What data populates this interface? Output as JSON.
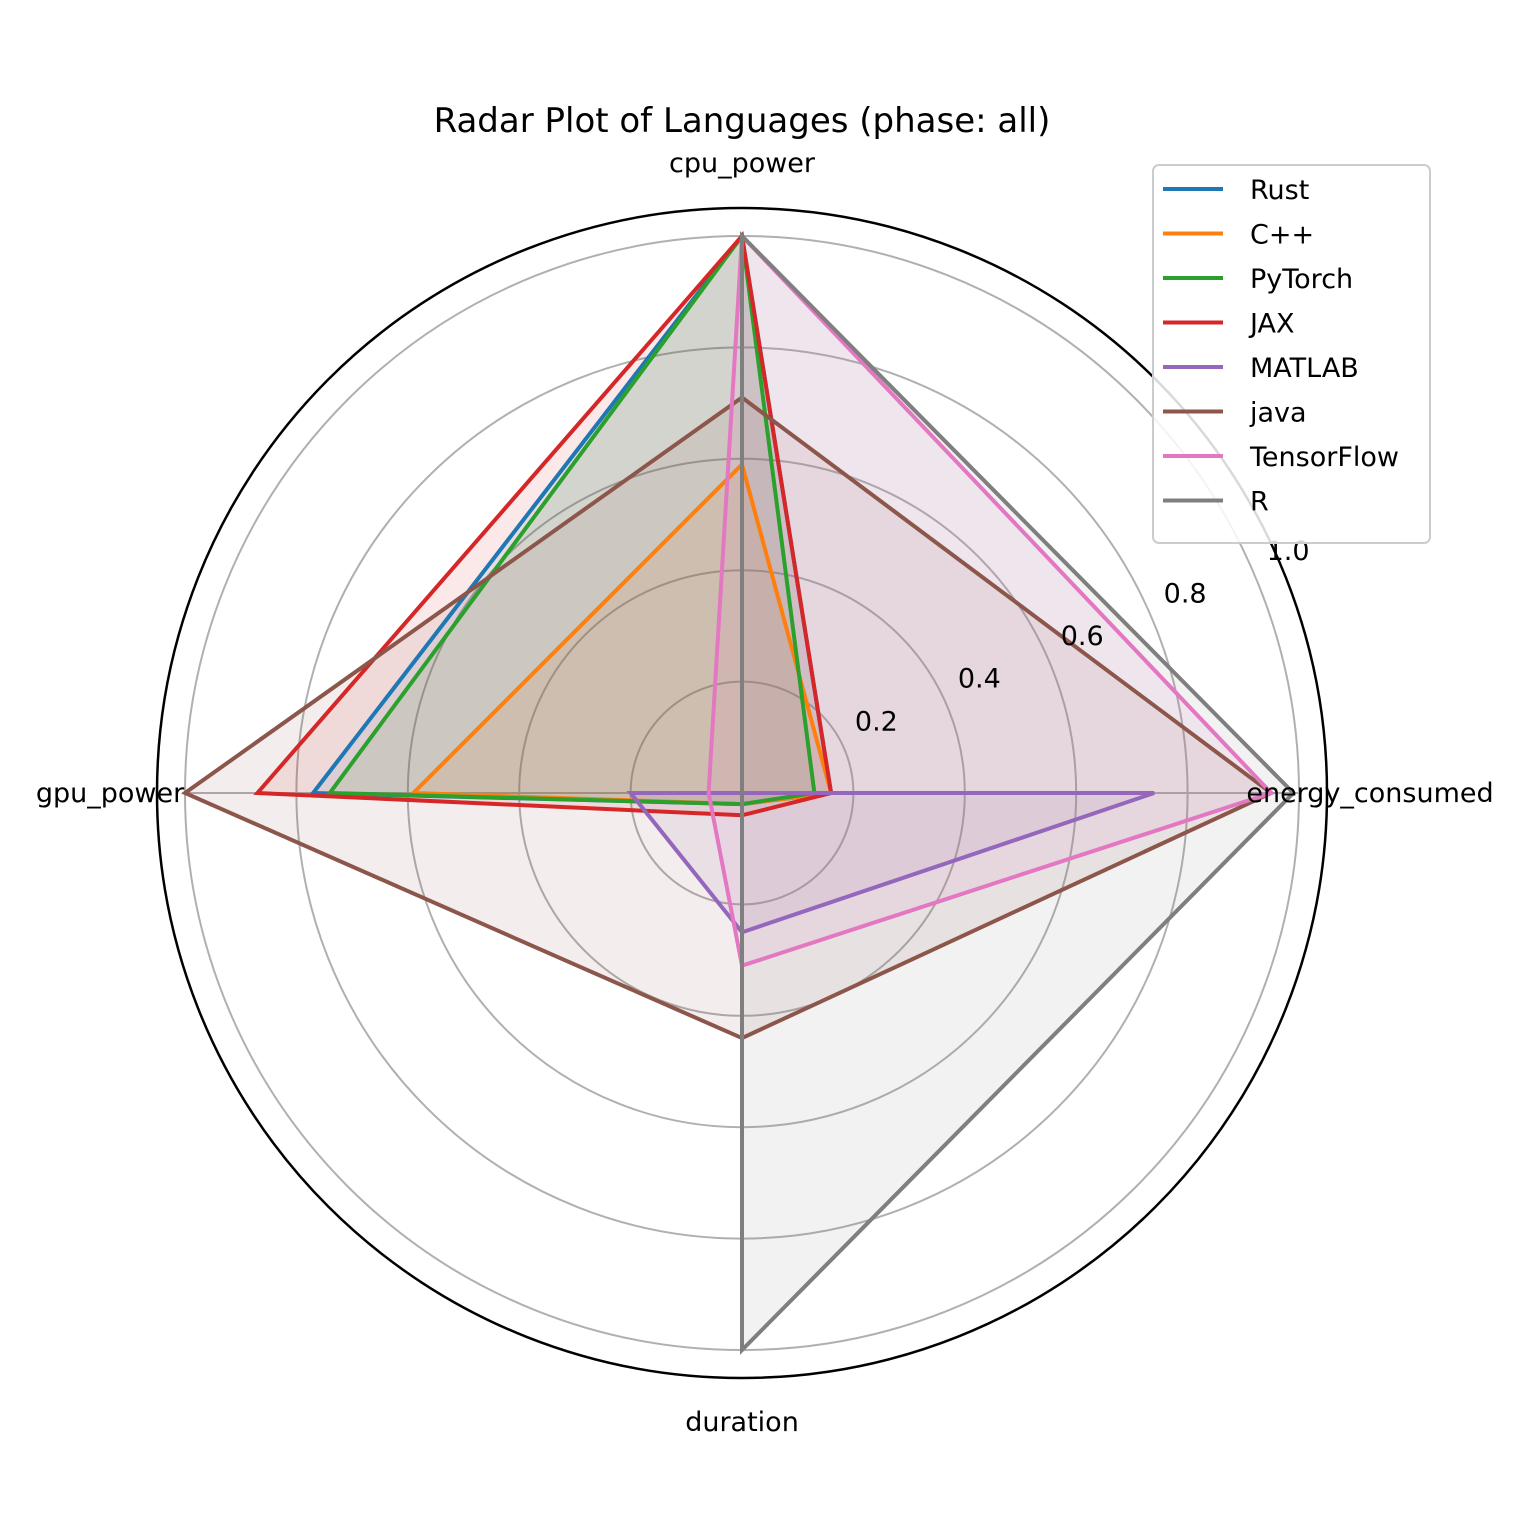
{
  "chart_data": {
    "type": "radar",
    "title": "Radar Plot of Languages (phase: all)",
    "axes": [
      "cpu_power",
      "energy_consumed",
      "duration",
      "gpu_power"
    ],
    "rlim": [
      0,
      1.0
    ],
    "radial_ticks": [
      0.2,
      0.4,
      0.6,
      0.8,
      1.0
    ],
    "radial_tick_labels": [
      "0.2",
      "0.4",
      "0.6",
      "0.8",
      "1.0"
    ],
    "grid": true,
    "legend_position": "top-right",
    "series": [
      {
        "name": "Rust",
        "color": "#1f77b4",
        "values": [
          1.0,
          0.16,
          0.02,
          0.77
        ]
      },
      {
        "name": "C++",
        "color": "#ff7f0e",
        "values": [
          0.59,
          0.16,
          0.02,
          0.59
        ]
      },
      {
        "name": "PyTorch",
        "color": "#2ca02c",
        "values": [
          1.0,
          0.13,
          0.02,
          0.74
        ]
      },
      {
        "name": "JAX",
        "color": "#d62728",
        "values": [
          1.0,
          0.16,
          0.04,
          0.87
        ]
      },
      {
        "name": "MATLAB",
        "color": "#9467bd",
        "values": [
          0.0,
          0.74,
          0.25,
          0.2
        ]
      },
      {
        "name": "java",
        "color": "#8c564b",
        "values": [
          0.71,
          0.95,
          0.44,
          1.0
        ]
      },
      {
        "name": "TensorFlow",
        "color": "#e377c2",
        "values": [
          1.0,
          0.95,
          0.31,
          0.06
        ]
      },
      {
        "name": "R",
        "color": "#7f7f7f",
        "values": [
          1.0,
          0.99,
          1.0,
          0.0
        ]
      }
    ]
  }
}
